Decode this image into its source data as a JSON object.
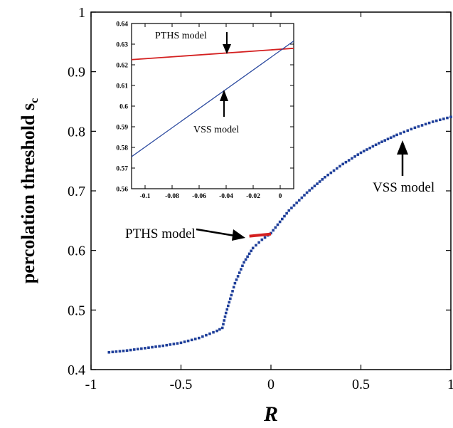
{
  "chart_data": [
    {
      "type": "scatter",
      "role": "main",
      "xlabel": "R",
      "ylabel": "percolation threshold s",
      "ylabel_subscript": "c",
      "xlim": [
        -1,
        1
      ],
      "ylim": [
        0.4,
        1
      ],
      "x_ticks": [
        -1,
        -0.5,
        0,
        0.5,
        1
      ],
      "x_tick_labels": [
        "-1",
        "-0.5",
        "0",
        "0.5",
        "1"
      ],
      "y_ticks": [
        0.4,
        0.5,
        0.6,
        0.7,
        0.8,
        0.9,
        1
      ],
      "y_tick_labels": [
        "0.4",
        "0.5",
        "0.6",
        "0.7",
        "0.8",
        "0.9",
        "1"
      ],
      "grid": false,
      "series": [
        {
          "name": "VSS model",
          "color": "#1f3f9a",
          "marker": "square",
          "points": [
            [
              -0.9,
              0.429
            ],
            [
              -0.8,
              0.432
            ],
            [
              -0.7,
              0.436
            ],
            [
              -0.6,
              0.44
            ],
            [
              -0.5,
              0.445
            ],
            [
              -0.4,
              0.453
            ],
            [
              -0.3,
              0.465
            ],
            [
              -0.27,
              0.47
            ],
            [
              -0.25,
              0.495
            ],
            [
              -0.22,
              0.525
            ],
            [
              -0.2,
              0.545
            ],
            [
              -0.15,
              0.58
            ],
            [
              -0.1,
              0.604
            ],
            [
              -0.05,
              0.618
            ],
            [
              0.0,
              0.629
            ],
            [
              0.05,
              0.648
            ],
            [
              0.1,
              0.667
            ],
            [
              0.2,
              0.697
            ],
            [
              0.3,
              0.723
            ],
            [
              0.4,
              0.745
            ],
            [
              0.5,
              0.764
            ],
            [
              0.6,
              0.78
            ],
            [
              0.7,
              0.794
            ],
            [
              0.8,
              0.806
            ],
            [
              0.9,
              0.816
            ],
            [
              1.0,
              0.824
            ]
          ]
        },
        {
          "name": "PTHS model",
          "color": "#d42020",
          "marker": "line",
          "points": [
            [
              -0.12,
              0.624
            ],
            [
              -0.1,
              0.6245
            ],
            [
              -0.05,
              0.626
            ],
            [
              0.0,
              0.6275
            ]
          ]
        }
      ],
      "annotations": [
        {
          "text": "PTHS model",
          "target": "PTHS model"
        },
        {
          "text": "VSS model",
          "target": "VSS model"
        }
      ]
    },
    {
      "type": "line",
      "role": "inset",
      "xlim": [
        -0.11,
        0.01
      ],
      "ylim": [
        0.56,
        0.64
      ],
      "x_ticks": [
        -0.1,
        -0.08,
        -0.06,
        -0.04,
        -0.02,
        0
      ],
      "x_tick_labels": [
        "-0.1",
        "-0.08",
        "-0.06",
        "-0.04",
        "-0.02",
        "0"
      ],
      "y_ticks": [
        0.56,
        0.57,
        0.58,
        0.59,
        0.6,
        0.61,
        0.62,
        0.63,
        0.64
      ],
      "y_tick_labels": [
        "0.56",
        "0.57",
        "0.58",
        "0.59",
        "0.6",
        "0.61",
        "0.62",
        "0.63",
        "0.64"
      ],
      "grid": false,
      "series": [
        {
          "name": "PTHS model",
          "color": "#d42020",
          "points": [
            [
              -0.11,
              0.6225
            ],
            [
              0.01,
              0.628
            ]
          ]
        },
        {
          "name": "VSS model",
          "color": "#1f3f9a",
          "points": [
            [
              -0.11,
              0.5755
            ],
            [
              0.01,
              0.6315
            ]
          ]
        }
      ],
      "annotations": [
        {
          "text": "PTHS model",
          "target": "PTHS model"
        },
        {
          "text": "VSS model",
          "target": "VSS model"
        }
      ]
    }
  ]
}
